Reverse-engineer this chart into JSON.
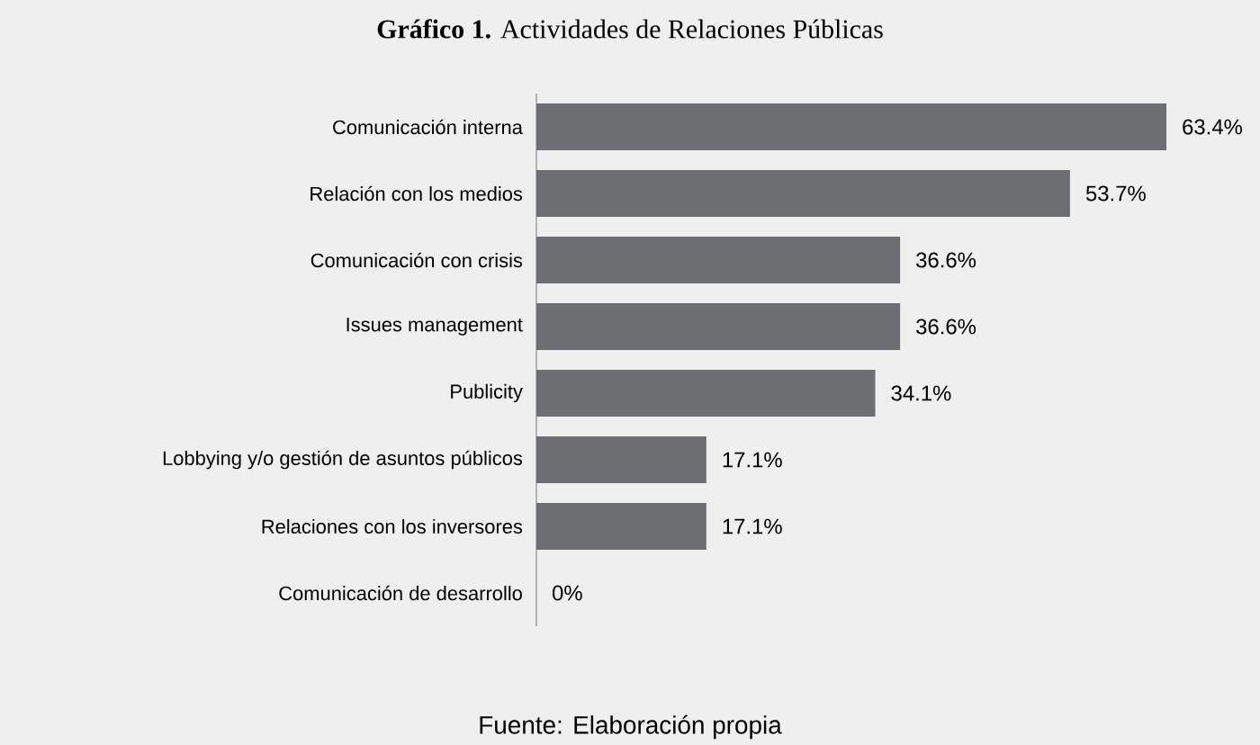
{
  "chart_data": {
    "type": "bar",
    "orientation": "horizontal",
    "title": "**Gráfico 1.** Actividades de Relaciones Públicas",
    "categories": [
      "Comunicación interna",
      "Relación con los medios",
      "Comunicación con crisis",
      "Issues management",
      "Publicity",
      "Lobbying y/o gestión de asuntos públicos",
      "Relaciones con los inversores",
      "Comunicación de desarrollo"
    ],
    "values": [
      63.4,
      53.7,
      36.6,
      36.6,
      34.1,
      17.1,
      17.1,
      0
    ],
    "value_labels": [
      "63.4%",
      "53.7%",
      "36.6%",
      "36.6%",
      "34.1%",
      "17.1%",
      "17.1%",
      "0%"
    ],
    "color": "#6d6e71",
    "annotations": [
      "Fuente: Elaboración propia"
    ]
  }
}
